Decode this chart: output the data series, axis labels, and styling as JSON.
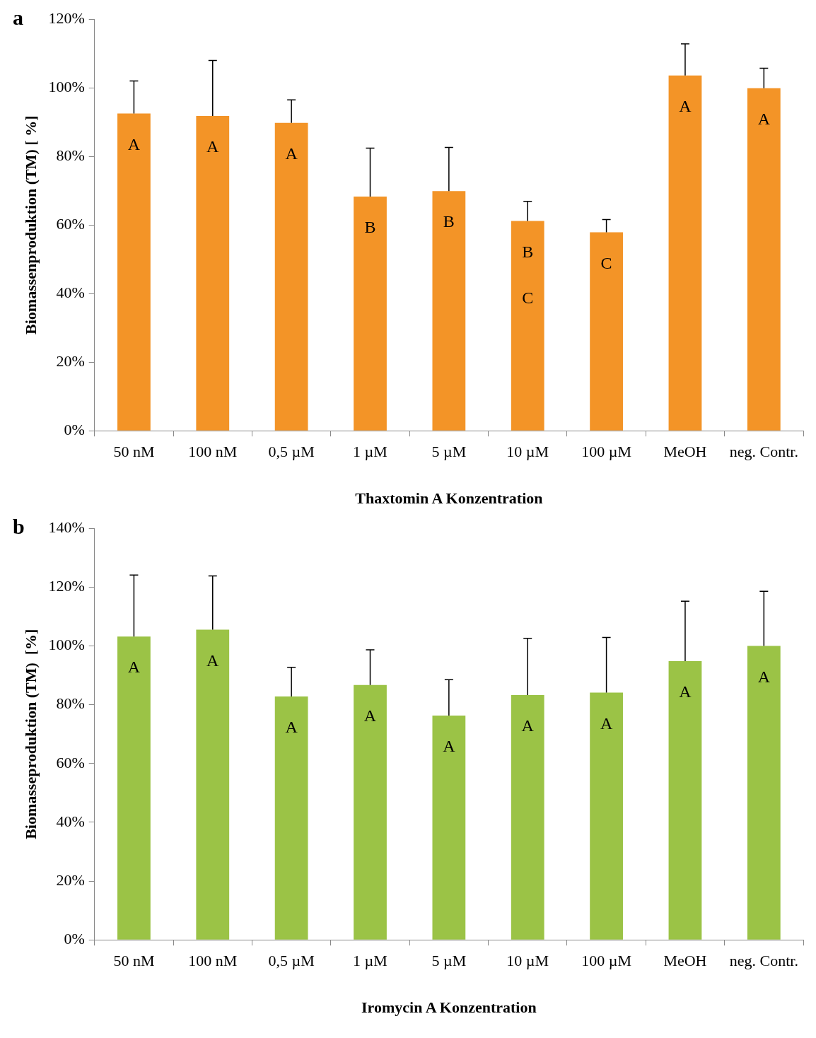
{
  "chart_data": [
    {
      "type": "bar",
      "xlabel": "Thaxtomin A Konzentration",
      "ylabel": "Biomassenproduktion (TM) [ %]",
      "annotations": [
        "a",
        "A",
        "A",
        "A",
        "B",
        "B",
        "B\nC",
        "C",
        "A",
        "A"
      ],
      "categories": [
        "50 nM",
        "100 nM",
        "0,5 µM",
        "1 µM",
        "5 µM",
        "10 µM",
        "100 µM",
        "MeOH",
        "neg. Contr."
      ],
      "values": [
        92.5,
        91.8,
        89.8,
        68.3,
        69.9,
        61.2,
        57.9,
        103.6,
        99.9
      ],
      "errors": [
        [
          92.5,
          102
        ],
        [
          91.8,
          108
        ],
        [
          89.8,
          96.5
        ],
        [
          68.3,
          82.4
        ],
        [
          69.9,
          82.6
        ],
        [
          61.2,
          66.9
        ],
        [
          57.9,
          61.6
        ],
        [
          103.6,
          112.8
        ],
        [
          99.9,
          105.7
        ]
      ],
      "color": "#f39427",
      "ylim": [
        0,
        120
      ],
      "yticks": [
        {
          "value": 0,
          "label": "0%"
        },
        {
          "value": 20,
          "label": "20%"
        },
        {
          "value": 40,
          "label": "40%"
        },
        {
          "value": 60,
          "label": "60%"
        },
        {
          "value": 80,
          "label": "80%"
        },
        {
          "value": 100,
          "label": "100%"
        },
        {
          "value": 120,
          "label": "120%"
        }
      ],
      "grid": false,
      "legend": false
    },
    {
      "type": "bar",
      "xlabel": "Iromycin A Konzentration",
      "ylabel": "Biomasseproduktion (TM)  [%]",
      "annotations": [
        "b",
        "A",
        "A",
        "A",
        "A",
        "A",
        "A",
        "A",
        "A",
        "A"
      ],
      "categories": [
        "50 nM",
        "100 nM",
        "0,5 µM",
        "1 µM",
        "5 µM",
        "10 µM",
        "100 µM",
        "MeOH",
        "neg. Contr."
      ],
      "values": [
        103.2,
        105.5,
        82.8,
        86.7,
        76.3,
        83.3,
        84.1,
        94.8,
        100
      ],
      "errors": [
        [
          103.2,
          124.1
        ],
        [
          105.5,
          123.8
        ],
        [
          82.8,
          92.7
        ],
        [
          86.7,
          98.7
        ],
        [
          76.3,
          88.5
        ],
        [
          83.3,
          102.6
        ],
        [
          84.1,
          102.9
        ],
        [
          94.8,
          115.2
        ],
        [
          100,
          118.6
        ]
      ],
      "color": "#9bc346",
      "ylim": [
        0,
        140
      ],
      "yticks": [
        {
          "value": 0,
          "label": "0%"
        },
        {
          "value": 20,
          "label": "20%"
        },
        {
          "value": 40,
          "label": "40%"
        },
        {
          "value": 60,
          "label": "60%"
        },
        {
          "value": 80,
          "label": "80%"
        },
        {
          "value": 100,
          "label": "100%"
        },
        {
          "value": 120,
          "label": "120%"
        },
        {
          "value": 140,
          "label": "140%"
        }
      ],
      "grid": false,
      "legend": false
    }
  ]
}
